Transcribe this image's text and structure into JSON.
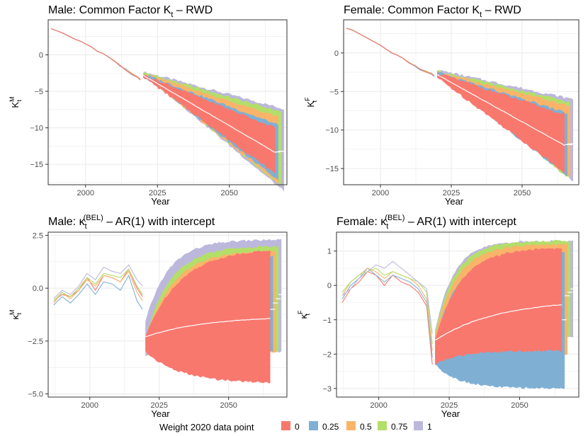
{
  "colors": {
    "w0": "#f8786e",
    "w025": "#7fb0d4",
    "w05": "#f9b46a",
    "w075": "#b3de69",
    "w1": "#bcb8dc",
    "grid": "#ebebeb",
    "frame": "#333333"
  },
  "legend": {
    "title": "Weight 2020 data point",
    "items": [
      {
        "label": "0",
        "color": "#f8786e"
      },
      {
        "label": "0.25",
        "color": "#7fb0d4"
      },
      {
        "label": "0.5",
        "color": "#f9b46a"
      },
      {
        "label": "0.75",
        "color": "#b3de69"
      },
      {
        "label": "1",
        "color": "#bcb8dc"
      }
    ]
  },
  "chart_data": [
    {
      "id": "male_K",
      "type": "area",
      "title": "Male: Common Factor K",
      "title_sub": "t",
      "title_suffix": " – RWD",
      "ylabel_main": "K",
      "ylabel_sup": "M",
      "ylabel_sub": "t",
      "xlabel": "Year",
      "xlim": [
        1987,
        2070
      ],
      "ylim": [
        -17.8,
        4.8
      ],
      "xticks": [
        2000,
        2025,
        2050
      ],
      "yticks": [
        0,
        -5,
        -10,
        -15
      ],
      "ytick_labels": [
        "0",
        "−5",
        "−10",
        "−15"
      ],
      "hist": {
        "years": [
          1988,
          1990,
          1992,
          1994,
          1996,
          1998,
          2000,
          2002,
          2004,
          2006,
          2008,
          2010,
          2012,
          2014,
          2016,
          2018,
          2019
        ],
        "values": [
          3.6,
          3.3,
          3.0,
          2.6,
          2.2,
          1.9,
          1.5,
          1.1,
          0.5,
          0.2,
          -0.3,
          -0.9,
          -1.5,
          -2.0,
          -2.6,
          -3.0,
          -3.4
        ]
      },
      "fan_start": 2020,
      "series": [
        {
          "name": "1",
          "start": [
            -2.5,
            -2.3
          ],
          "end": [
            -18.7,
            -7.4
          ],
          "last_year": 2069,
          "median": [
            -2.4,
            -13.2
          ]
        },
        {
          "name": "0.75",
          "start": [
            -2.6,
            -2.4
          ],
          "end": [
            -18.0,
            -7.8
          ],
          "last_year": 2068,
          "median": [
            -2.5,
            -13.2
          ]
        },
        {
          "name": "0.5",
          "start": [
            -2.7,
            -2.5
          ],
          "end": [
            -17.6,
            -8.5
          ],
          "last_year": 2067,
          "median": [
            -2.6,
            -13.3
          ]
        },
        {
          "name": "0.25",
          "start": [
            -2.8,
            -2.6
          ],
          "end": [
            -17.2,
            -9.6
          ],
          "last_year": 2067,
          "median": [
            -2.7,
            -13.3
          ]
        },
        {
          "name": "0",
          "start": [
            -3.0,
            -2.7
          ],
          "end": [
            -16.3,
            -10.0
          ],
          "last_year": 2066,
          "median": [
            -2.8,
            -13.4
          ]
        }
      ]
    },
    {
      "id": "female_K",
      "type": "area",
      "title": "Female: Common Factor K",
      "title_sub": "t",
      "title_suffix": " – RWD",
      "ylabel_main": "K",
      "ylabel_sup": "F",
      "ylabel_sub": "t",
      "xlabel": "Year",
      "xlim": [
        1987,
        2070
      ],
      "ylim": [
        -17.1,
        4.3
      ],
      "xticks": [
        2000,
        2025,
        2050
      ],
      "yticks": [
        0,
        -5,
        -10,
        -15
      ],
      "ytick_labels": [
        "0",
        "−5",
        "−10",
        "−15"
      ],
      "hist": {
        "years": [
          1988,
          1990,
          1992,
          1994,
          1996,
          1998,
          2000,
          2002,
          2004,
          2006,
          2008,
          2010,
          2012,
          2014,
          2016,
          2018,
          2019
        ],
        "values": [
          3.2,
          3.0,
          2.6,
          2.2,
          1.8,
          1.4,
          1.0,
          0.5,
          0.0,
          -0.3,
          -0.7,
          -1.3,
          -1.7,
          -2.1,
          -2.4,
          -2.7,
          -3.0
        ]
      },
      "fan_start": 2020,
      "series": [
        {
          "name": "1",
          "start": [
            -2.4,
            -2.2
          ],
          "end": [
            -16.6,
            -6.0
          ],
          "last_year": 2068,
          "median": [
            -2.3,
            -11.8
          ]
        },
        {
          "name": "0.75",
          "start": [
            -2.5,
            -2.3
          ],
          "end": [
            -16.4,
            -6.4
          ],
          "last_year": 2067,
          "median": [
            -2.4,
            -11.8
          ]
        },
        {
          "name": "0.5",
          "start": [
            -2.6,
            -2.4
          ],
          "end": [
            -16.2,
            -6.9
          ],
          "last_year": 2067,
          "median": [
            -2.5,
            -11.9
          ]
        },
        {
          "name": "0.25",
          "start": [
            -2.8,
            -2.5
          ],
          "end": [
            -16.0,
            -7.8
          ],
          "last_year": 2066,
          "median": [
            -2.6,
            -11.9
          ]
        },
        {
          "name": "0",
          "start": [
            -3.2,
            -2.6
          ],
          "end": [
            -15.5,
            -8.0
          ],
          "last_year": 2065,
          "median": [
            -2.8,
            -12.0
          ]
        }
      ]
    },
    {
      "id": "male_kappa",
      "type": "area",
      "title": "Male: κ",
      "title_sub": "t",
      "title_sup": "(BEL)",
      "title_suffix": " – AR(1) with intercept",
      "ylabel_main": "κ",
      "ylabel_sup": "M",
      "ylabel_sub": "t",
      "xlabel": "Year",
      "xlim": [
        1985,
        2071
      ],
      "ylim": [
        -5.15,
        2.65
      ],
      "xticks": [
        2000,
        2025,
        2050
      ],
      "yticks": [
        2.5,
        0,
        -2.5,
        -5
      ],
      "ytick_labels": [
        "2.5",
        "0.0",
        "−2.5",
        "−5.0"
      ],
      "hist_lines": [
        {
          "name": "0",
          "years": [
            1987,
            1990,
            1993,
            1996,
            1999,
            2002,
            2005,
            2008,
            2011,
            2014,
            2017,
            2019
          ],
          "values": [
            -0.6,
            -0.3,
            -0.4,
            -0.1,
            0.5,
            -0.1,
            0.6,
            0.5,
            0.3,
            0.9,
            0.0,
            -0.4
          ]
        },
        {
          "name": "0.25",
          "years": [
            1987,
            1990,
            1993,
            1996,
            1999,
            2002,
            2005,
            2008,
            2011,
            2014,
            2017,
            2019
          ],
          "values": [
            -0.8,
            -0.4,
            -0.7,
            -0.3,
            0.2,
            -0.3,
            0.3,
            0.2,
            -0.1,
            0.6,
            -0.6,
            -1.0
          ]
        },
        {
          "name": "0.5",
          "years": [
            1987,
            1990,
            1993,
            1996,
            1999,
            2002,
            2005,
            2008,
            2011,
            2014,
            2017,
            2019
          ],
          "values": [
            -0.7,
            -0.2,
            -0.5,
            -0.1,
            0.4,
            0.1,
            0.6,
            0.5,
            0.3,
            0.8,
            -0.2,
            -0.6
          ]
        },
        {
          "name": "0.75",
          "years": [
            1987,
            1990,
            1993,
            1996,
            1999,
            2002,
            2005,
            2008,
            2011,
            2014,
            2017,
            2019
          ],
          "values": [
            -0.6,
            -0.2,
            -0.4,
            0.0,
            0.5,
            0.2,
            0.7,
            0.6,
            0.5,
            0.9,
            0.1,
            -0.3
          ]
        },
        {
          "name": "1",
          "years": [
            1987,
            1990,
            1993,
            1996,
            1999,
            2002,
            2005,
            2008,
            2011,
            2014,
            2017,
            2019
          ],
          "values": [
            -0.5,
            -0.1,
            -0.3,
            0.1,
            0.7,
            0.4,
            1.0,
            0.8,
            0.7,
            1.1,
            0.4,
            0.1
          ]
        }
      ],
      "series": [
        {
          "name": "1",
          "start_year": 2020,
          "start": [
            -3.2,
            -1.6
          ],
          "end": [
            -3.0,
            2.3
          ],
          "last_year": 2069,
          "median_end": -0.3,
          "k": 0.12
        },
        {
          "name": "0.75",
          "start_year": 2021,
          "start": [
            -3.0,
            -1.9
          ],
          "end": [
            -3.0,
            2.0
          ],
          "last_year": 2068,
          "median_end": -0.5,
          "k": 0.11
        },
        {
          "name": "0.5",
          "start_year": 2021,
          "start": [
            -3.2,
            -2.0
          ],
          "end": [
            -3.0,
            1.8
          ],
          "last_year": 2067,
          "median_end": -0.7,
          "k": 0.1
        },
        {
          "name": "0.25",
          "start_year": 2021,
          "start": [
            -3.0,
            -2.2
          ],
          "end": [
            -3.0,
            1.6
          ],
          "last_year": 2066,
          "median_end": -1.0,
          "k": 0.09
        },
        {
          "name": "0",
          "start_year": 2020,
          "start": [
            -3.0,
            -2.3
          ],
          "end": [
            -4.5,
            1.9
          ],
          "last_year": 2065,
          "median_start": -2.3,
          "median_end": -1.3,
          "k": 0.08
        }
      ]
    },
    {
      "id": "female_kappa",
      "type": "area",
      "title": "Female: κ",
      "title_sub": "t",
      "title_sup": "(BEL)",
      "title_suffix": " – AR(1) with intercept",
      "ylabel_main": "κ",
      "ylabel_sup": "F",
      "ylabel_sub": "t",
      "xlabel": "Year",
      "xlim": [
        1985,
        2071
      ],
      "ylim": [
        -3.25,
        1.55
      ],
      "xticks": [
        2000,
        2025,
        2050
      ],
      "yticks": [
        1,
        0,
        -1,
        -2,
        -3
      ],
      "ytick_labels": [
        "1",
        "0",
        "−1",
        "−2",
        "−3"
      ],
      "hist_lines": [
        {
          "name": "0",
          "years": [
            1987,
            1990,
            1993,
            1996,
            1999,
            2002,
            2005,
            2008,
            2011,
            2014,
            2017,
            2019
          ],
          "values": [
            -0.5,
            -0.1,
            0.1,
            0.4,
            0.3,
            0.0,
            0.3,
            0.1,
            0.0,
            -0.2,
            -0.6,
            -2.3
          ]
        },
        {
          "name": "0.25",
          "years": [
            1987,
            1990,
            1993,
            1996,
            1999,
            2002,
            2005,
            2008,
            2011,
            2014,
            2017,
            2019
          ],
          "values": [
            -0.4,
            0.0,
            0.2,
            0.5,
            0.3,
            0.1,
            0.3,
            0.2,
            0.1,
            -0.1,
            -0.5,
            -2.1
          ]
        },
        {
          "name": "0.5",
          "years": [
            1987,
            1990,
            1993,
            1996,
            1999,
            2002,
            2005,
            2008,
            2011,
            2014,
            2017,
            2019
          ],
          "values": [
            -0.3,
            0.1,
            0.3,
            0.5,
            0.4,
            0.2,
            0.4,
            0.3,
            0.2,
            0.0,
            -0.4,
            -1.9
          ]
        },
        {
          "name": "0.75",
          "years": [
            1987,
            1990,
            1993,
            1996,
            1999,
            2002,
            2005,
            2008,
            2011,
            2014,
            2017,
            2019
          ],
          "values": [
            -0.2,
            0.1,
            0.3,
            0.4,
            0.5,
            0.3,
            0.4,
            0.3,
            0.2,
            0.1,
            -0.2,
            -1.7
          ]
        },
        {
          "name": "1",
          "years": [
            1987,
            1990,
            1993,
            1996,
            1999,
            2002,
            2005,
            2008,
            2011,
            2014,
            2017,
            2019
          ],
          "values": [
            -0.3,
            -0.1,
            0.2,
            0.4,
            0.6,
            0.5,
            0.7,
            0.5,
            0.3,
            0.1,
            -0.1,
            -1.4
          ]
        }
      ],
      "series": [
        {
          "name": "1",
          "start_year": 2020,
          "start": [
            -2.0,
            -1.3
          ],
          "end": [
            -1.5,
            1.3
          ],
          "last_year": 2069,
          "median_end": -0.1,
          "k": 0.15
        },
        {
          "name": "0.75",
          "start_year": 2020,
          "start": [
            -2.1,
            -1.4
          ],
          "end": [
            -1.5,
            1.3
          ],
          "last_year": 2068,
          "median_end": -0.2,
          "k": 0.14
        },
        {
          "name": "0.5",
          "start_year": 2020,
          "start": [
            -2.2,
            -1.5
          ],
          "end": [
            -2.0,
            1.2
          ],
          "last_year": 2067,
          "median_end": -0.3,
          "k": 0.13
        },
        {
          "name": "0.25",
          "start_year": 2020,
          "start": [
            -2.3,
            -1.6
          ],
          "end": [
            -3.0,
            1.0
          ],
          "last_year": 2066,
          "median_end": -1.0,
          "k": 0.12
        },
        {
          "name": "0",
          "start_year": 2020,
          "start": [
            -2.3,
            -1.6
          ],
          "end": [
            -1.9,
            1.1
          ],
          "last_year": 2065,
          "median_start": -1.6,
          "median_end": -0.4,
          "k": 0.11
        }
      ]
    }
  ]
}
